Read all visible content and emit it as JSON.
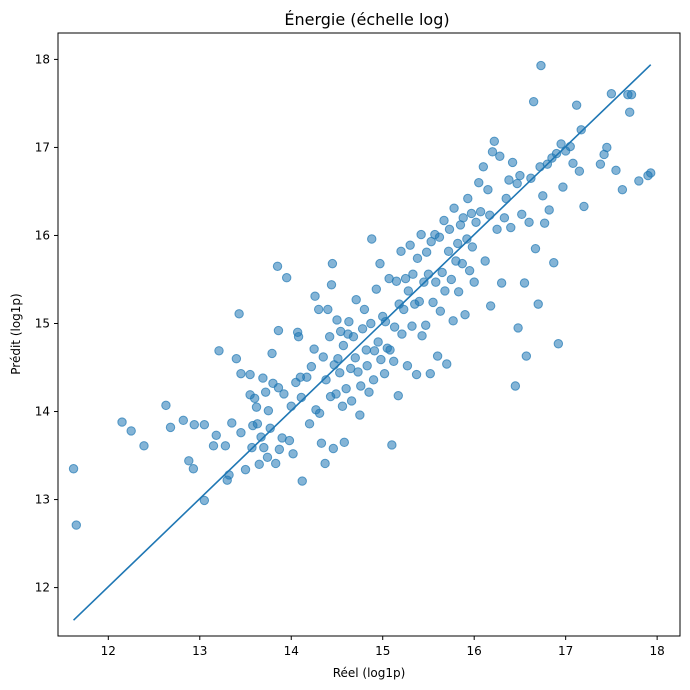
{
  "chart_data": {
    "type": "scatter",
    "title": "Énergie (échelle log)",
    "xlabel": "Réel (log1p)",
    "ylabel": "Prédit (log1p)",
    "xlim": [
      11.45,
      18.25
    ],
    "ylim": [
      11.45,
      18.3
    ],
    "xticks": [
      12,
      13,
      14,
      15,
      16,
      17,
      18
    ],
    "yticks": [
      12,
      13,
      14,
      15,
      16,
      17,
      18
    ],
    "colors": {
      "points": "#1f77b4",
      "line": "#1f77b4"
    },
    "line": {
      "x": [
        11.62,
        17.93
      ],
      "y": [
        11.63,
        17.94
      ]
    },
    "points": [
      [
        11.62,
        13.35
      ],
      [
        11.65,
        12.71
      ],
      [
        12.15,
        13.88
      ],
      [
        12.25,
        13.78
      ],
      [
        12.39,
        13.61
      ],
      [
        12.63,
        14.07
      ],
      [
        12.68,
        13.82
      ],
      [
        12.82,
        13.9
      ],
      [
        12.88,
        13.44
      ],
      [
        12.93,
        13.35
      ],
      [
        12.94,
        13.85
      ],
      [
        13.05,
        13.85
      ],
      [
        13.05,
        12.99
      ],
      [
        13.15,
        13.61
      ],
      [
        13.18,
        13.73
      ],
      [
        13.21,
        14.69
      ],
      [
        13.28,
        13.61
      ],
      [
        13.3,
        13.22
      ],
      [
        13.32,
        13.28
      ],
      [
        13.35,
        13.87
      ],
      [
        13.4,
        14.6
      ],
      [
        13.43,
        15.11
      ],
      [
        13.45,
        14.43
      ],
      [
        13.45,
        13.76
      ],
      [
        13.5,
        13.34
      ],
      [
        13.55,
        14.42
      ],
      [
        13.55,
        14.19
      ],
      [
        13.57,
        13.59
      ],
      [
        13.58,
        13.84
      ],
      [
        13.6,
        14.15
      ],
      [
        13.62,
        14.05
      ],
      [
        13.63,
        13.86
      ],
      [
        13.65,
        13.4
      ],
      [
        13.67,
        13.71
      ],
      [
        13.69,
        14.38
      ],
      [
        13.7,
        13.59
      ],
      [
        13.72,
        14.22
      ],
      [
        13.74,
        13.48
      ],
      [
        13.75,
        14.01
      ],
      [
        13.77,
        13.81
      ],
      [
        13.79,
        14.66
      ],
      [
        13.8,
        14.32
      ],
      [
        13.83,
        13.41
      ],
      [
        13.85,
        15.65
      ],
      [
        13.86,
        14.92
      ],
      [
        13.86,
        14.27
      ],
      [
        13.87,
        13.57
      ],
      [
        13.9,
        13.7
      ],
      [
        13.92,
        14.2
      ],
      [
        13.95,
        15.52
      ],
      [
        13.98,
        13.67
      ],
      [
        14.0,
        14.06
      ],
      [
        14.02,
        13.52
      ],
      [
        14.05,
        14.33
      ],
      [
        14.07,
        14.9
      ],
      [
        14.08,
        14.85
      ],
      [
        14.1,
        14.39
      ],
      [
        14.11,
        14.16
      ],
      [
        14.12,
        13.21
      ],
      [
        14.17,
        14.39
      ],
      [
        14.2,
        13.86
      ],
      [
        14.22,
        14.51
      ],
      [
        14.25,
        14.71
      ],
      [
        14.26,
        15.31
      ],
      [
        14.27,
        14.02
      ],
      [
        14.3,
        15.16
      ],
      [
        14.31,
        13.98
      ],
      [
        14.33,
        13.64
      ],
      [
        14.35,
        14.62
      ],
      [
        14.37,
        13.41
      ],
      [
        14.38,
        14.36
      ],
      [
        14.4,
        15.16
      ],
      [
        14.42,
        14.85
      ],
      [
        14.43,
        14.17
      ],
      [
        14.44,
        15.44
      ],
      [
        14.45,
        15.68
      ],
      [
        14.46,
        13.58
      ],
      [
        14.47,
        14.53
      ],
      [
        14.49,
        14.2
      ],
      [
        14.5,
        15.04
      ],
      [
        14.51,
        14.6
      ],
      [
        14.53,
        14.44
      ],
      [
        14.54,
        14.91
      ],
      [
        14.56,
        14.06
      ],
      [
        14.57,
        14.75
      ],
      [
        14.58,
        13.65
      ],
      [
        14.6,
        14.26
      ],
      [
        14.62,
        14.88
      ],
      [
        14.63,
        15.02
      ],
      [
        14.65,
        14.49
      ],
      [
        14.66,
        14.12
      ],
      [
        14.68,
        14.85
      ],
      [
        14.7,
        14.61
      ],
      [
        14.71,
        15.27
      ],
      [
        14.73,
        14.45
      ],
      [
        14.75,
        13.96
      ],
      [
        14.76,
        14.29
      ],
      [
        14.78,
        14.94
      ],
      [
        14.8,
        15.16
      ],
      [
        14.82,
        14.7
      ],
      [
        14.83,
        14.52
      ],
      [
        14.85,
        14.22
      ],
      [
        14.87,
        15.0
      ],
      [
        14.88,
        15.96
      ],
      [
        14.9,
        14.36
      ],
      [
        14.91,
        14.69
      ],
      [
        14.93,
        15.39
      ],
      [
        14.95,
        14.79
      ],
      [
        14.97,
        15.68
      ],
      [
        14.98,
        14.59
      ],
      [
        15.0,
        15.08
      ],
      [
        15.02,
        14.43
      ],
      [
        15.03,
        15.02
      ],
      [
        15.05,
        14.72
      ],
      [
        15.07,
        15.51
      ],
      [
        15.08,
        14.7
      ],
      [
        15.1,
        13.62
      ],
      [
        15.12,
        14.57
      ],
      [
        15.13,
        14.96
      ],
      [
        15.15,
        15.48
      ],
      [
        15.17,
        14.18
      ],
      [
        15.18,
        15.22
      ],
      [
        15.2,
        15.82
      ],
      [
        15.21,
        14.88
      ],
      [
        15.23,
        15.16
      ],
      [
        15.25,
        15.51
      ],
      [
        15.27,
        14.52
      ],
      [
        15.28,
        15.37
      ],
      [
        15.3,
        15.89
      ],
      [
        15.32,
        14.97
      ],
      [
        15.33,
        15.56
      ],
      [
        15.35,
        15.22
      ],
      [
        15.37,
        14.42
      ],
      [
        15.38,
        15.74
      ],
      [
        15.4,
        15.25
      ],
      [
        15.42,
        16.01
      ],
      [
        15.43,
        14.86
      ],
      [
        15.45,
        15.47
      ],
      [
        15.47,
        14.98
      ],
      [
        15.48,
        15.81
      ],
      [
        15.5,
        15.56
      ],
      [
        15.52,
        14.43
      ],
      [
        15.53,
        15.93
      ],
      [
        15.55,
        15.24
      ],
      [
        15.57,
        16.01
      ],
      [
        15.58,
        15.47
      ],
      [
        15.6,
        14.63
      ],
      [
        15.62,
        15.98
      ],
      [
        15.63,
        15.14
      ],
      [
        15.65,
        15.58
      ],
      [
        15.67,
        16.17
      ],
      [
        15.68,
        15.37
      ],
      [
        15.7,
        14.54
      ],
      [
        15.72,
        15.82
      ],
      [
        15.73,
        16.07
      ],
      [
        15.75,
        15.5
      ],
      [
        15.77,
        15.03
      ],
      [
        15.78,
        16.31
      ],
      [
        15.8,
        15.71
      ],
      [
        15.82,
        15.91
      ],
      [
        15.83,
        15.36
      ],
      [
        15.85,
        16.12
      ],
      [
        15.87,
        15.68
      ],
      [
        15.88,
        16.2
      ],
      [
        15.9,
        15.1
      ],
      [
        15.92,
        15.96
      ],
      [
        15.93,
        16.42
      ],
      [
        15.95,
        15.6
      ],
      [
        15.97,
        16.25
      ],
      [
        15.98,
        15.87
      ],
      [
        16.0,
        15.47
      ],
      [
        16.02,
        16.15
      ],
      [
        16.05,
        16.6
      ],
      [
        16.07,
        16.27
      ],
      [
        16.1,
        16.78
      ],
      [
        16.12,
        15.71
      ],
      [
        16.15,
        16.52
      ],
      [
        16.17,
        16.23
      ],
      [
        16.18,
        15.2
      ],
      [
        16.2,
        16.95
      ],
      [
        16.22,
        17.07
      ],
      [
        16.25,
        16.07
      ],
      [
        16.28,
        16.9
      ],
      [
        16.3,
        15.46
      ],
      [
        16.33,
        16.2
      ],
      [
        16.35,
        16.42
      ],
      [
        16.38,
        16.63
      ],
      [
        16.4,
        16.09
      ],
      [
        16.42,
        16.83
      ],
      [
        16.45,
        14.29
      ],
      [
        16.47,
        16.59
      ],
      [
        16.48,
        14.95
      ],
      [
        16.5,
        16.68
      ],
      [
        16.52,
        16.24
      ],
      [
        16.55,
        15.46
      ],
      [
        16.57,
        14.63
      ],
      [
        16.6,
        16.15
      ],
      [
        16.62,
        16.65
      ],
      [
        16.65,
        17.52
      ],
      [
        16.67,
        15.85
      ],
      [
        16.7,
        15.22
      ],
      [
        16.72,
        16.78
      ],
      [
        16.73,
        17.93
      ],
      [
        16.75,
        16.45
      ],
      [
        16.77,
        16.14
      ],
      [
        16.8,
        16.81
      ],
      [
        16.82,
        16.29
      ],
      [
        16.85,
        16.88
      ],
      [
        16.87,
        15.69
      ],
      [
        16.9,
        16.93
      ],
      [
        16.92,
        14.77
      ],
      [
        16.95,
        17.04
      ],
      [
        16.97,
        16.55
      ],
      [
        17.0,
        16.96
      ],
      [
        17.05,
        17.01
      ],
      [
        17.08,
        16.82
      ],
      [
        17.12,
        17.48
      ],
      [
        17.15,
        16.73
      ],
      [
        17.17,
        17.2
      ],
      [
        17.2,
        16.33
      ],
      [
        17.38,
        16.81
      ],
      [
        17.42,
        16.92
      ],
      [
        17.45,
        17.0
      ],
      [
        17.5,
        17.61
      ],
      [
        17.55,
        16.74
      ],
      [
        17.62,
        16.52
      ],
      [
        17.68,
        17.6
      ],
      [
        17.7,
        17.4
      ],
      [
        17.72,
        17.6
      ],
      [
        17.8,
        16.62
      ],
      [
        17.9,
        16.68
      ],
      [
        17.93,
        16.71
      ]
    ]
  }
}
